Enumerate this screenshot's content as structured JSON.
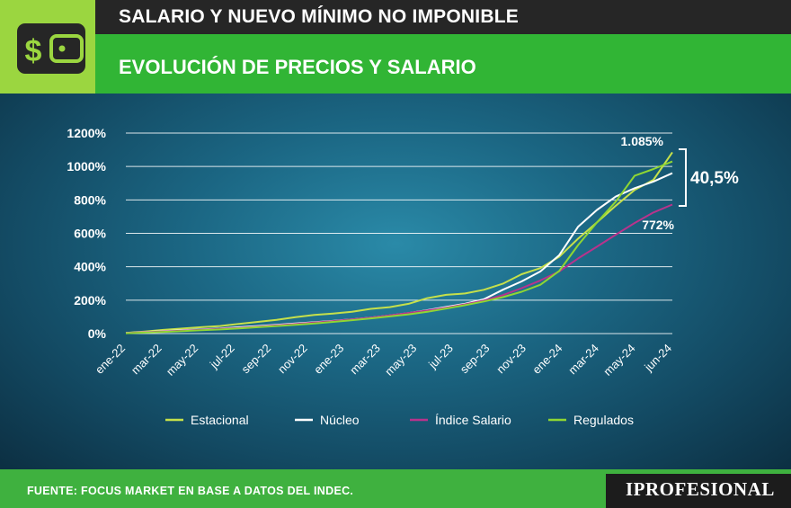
{
  "header": {
    "title": "SALARIO Y NUEVO MÍNIMO NO IMPONIBLE",
    "subtitle": "EVOLUCIÓN DE PRECIOS Y SALARIO",
    "icon": "wallet-dollar-icon"
  },
  "footer": {
    "source": "FUENTE: FOCUS MARKET EN BASE A DATOS DEL INDEC.",
    "brand": "IPROFESIONAL"
  },
  "colors": {
    "header_bg": "#262626",
    "accent_green": "#31b535",
    "icon_bg": "#9bd640",
    "estacional": "#c6e04a",
    "nucleo": "#ffffff",
    "salario": "#b8338c",
    "regulados": "#8fd633"
  },
  "chart_data": {
    "type": "line",
    "title": "EVOLUCIÓN DE PRECIOS Y SALARIO",
    "x_tick_labels": [
      "ene-22",
      "mar-22",
      "may-22",
      "jul-22",
      "sep-22",
      "nov-22",
      "ene-23",
      "mar-23",
      "may-23",
      "jul-23",
      "sep-23",
      "nov-23",
      "ene-24",
      "mar-24",
      "may-24",
      "jun-24"
    ],
    "x": [
      "ene-22",
      "feb-22",
      "mar-22",
      "abr-22",
      "may-22",
      "jun-22",
      "jul-22",
      "ago-22",
      "sep-22",
      "oct-22",
      "nov-22",
      "dic-22",
      "ene-23",
      "feb-23",
      "mar-23",
      "abr-23",
      "may-23",
      "jun-23",
      "jul-23",
      "ago-23",
      "sep-23",
      "oct-23",
      "nov-23",
      "dic-23",
      "ene-24",
      "feb-24",
      "mar-24",
      "abr-24",
      "may-24",
      "jun-24"
    ],
    "y_ticks": [
      "0%",
      "200%",
      "400%",
      "600%",
      "800%",
      "1000%",
      "1200%"
    ],
    "ylim": [
      0,
      1200
    ],
    "grid": true,
    "legend_position": "bottom",
    "series": [
      {
        "name": "Estacional",
        "color": "#c6e04a",
        "values": [
          4,
          12,
          22,
          30,
          38,
          45,
          58,
          70,
          82,
          98,
          112,
          120,
          130,
          148,
          158,
          178,
          212,
          232,
          240,
          262,
          298,
          355,
          392,
          460,
          568,
          665,
          765,
          860,
          920,
          1085
        ]
      },
      {
        "name": "Núcleo",
        "color": "#ffffff",
        "values": [
          4,
          9,
          15,
          20,
          25,
          30,
          38,
          45,
          52,
          60,
          68,
          76,
          85,
          95,
          108,
          122,
          140,
          160,
          178,
          205,
          262,
          312,
          372,
          470,
          640,
          740,
          820,
          870,
          910,
          960
        ]
      },
      {
        "name": "Índice Salario",
        "color": "#b8338c",
        "values": [
          3,
          8,
          13,
          18,
          23,
          28,
          34,
          41,
          49,
          57,
          66,
          75,
          85,
          96,
          109,
          123,
          138,
          155,
          175,
          198,
          230,
          272,
          318,
          372,
          450,
          520,
          592,
          662,
          725,
          772
        ]
      },
      {
        "name": "Regulados",
        "color": "#8fd633",
        "values": [
          2,
          6,
          10,
          15,
          20,
          25,
          31,
          38,
          45,
          53,
          61,
          70,
          80,
          91,
          103,
          115,
          130,
          150,
          170,
          192,
          218,
          250,
          292,
          375,
          530,
          665,
          790,
          945,
          985,
          1030
        ]
      }
    ],
    "annotations": {
      "top_value": "1.085%",
      "salary_value": "772%",
      "gap_value": "40,5%"
    }
  }
}
